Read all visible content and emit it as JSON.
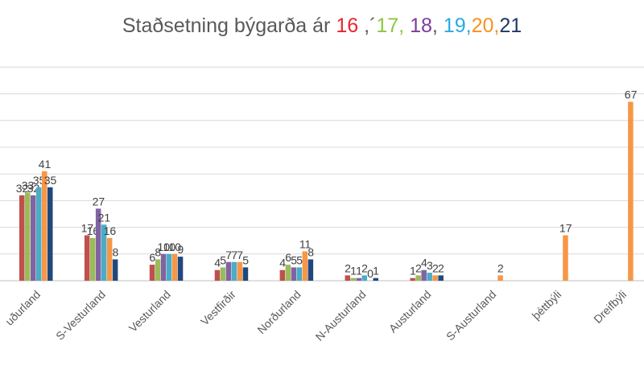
{
  "title_parts": [
    {
      "text": "Staðsetning býgarða ár ",
      "color": "#595959"
    },
    {
      "text": "16",
      "color": "#e8232d"
    },
    {
      "text": " ,´",
      "color": "#595959"
    },
    {
      "text": "17",
      "color": "#8dc63f"
    },
    {
      "text": ", ",
      "color": "#8dc63f"
    },
    {
      "text": "18",
      "color": "#7c3d9b"
    },
    {
      "text": ", ",
      "color": "#595959"
    },
    {
      "text": "19",
      "color": "#29abe2"
    },
    {
      "text": ",",
      "color": "#29abe2"
    },
    {
      "text": "20",
      "color": "#f7931e"
    },
    {
      "text": ",",
      "color": "#f7931e"
    },
    {
      "text": "21",
      "color": "#1f3864"
    }
  ],
  "chart_data": {
    "type": "bar",
    "title": "Staðsetning býgarða ár 16 ,´17, 18, 19,20,21",
    "categories": [
      "Suðurland",
      "S-Vesturland",
      "Vesturland",
      "Vestfirðir",
      "Norðurland",
      "N-Austurland",
      "Austurland",
      "S-Austurland",
      "Þéttbýli",
      "Dreifbýli"
    ],
    "category_labels_visible": [
      "uðurland",
      "S-Vesturland",
      "Vesturland",
      "Vestfirðir",
      "Norðurland",
      "N-Austurland",
      "Austurland",
      "S-Austurland",
      "þéttbýli",
      "Dreifbýli"
    ],
    "series": [
      {
        "color": "#c0504d",
        "values": [
          32,
          17,
          6,
          4,
          4,
          2,
          1,
          null,
          null,
          null
        ]
      },
      {
        "color": "#9bbb59",
        "values": [
          33,
          16,
          8,
          5,
          6,
          1,
          2,
          null,
          null,
          null
        ]
      },
      {
        "color": "#8064a2",
        "values": [
          32,
          27,
          10,
          7,
          5,
          1,
          4,
          null,
          null,
          null
        ]
      },
      {
        "color": "#4bacc6",
        "values": [
          35,
          21,
          10,
          7,
          5,
          2,
          3,
          null,
          null,
          null
        ]
      },
      {
        "color": "#f79646",
        "values": [
          41,
          16,
          10,
          7,
          11,
          0,
          2,
          2,
          17,
          67
        ]
      },
      {
        "color": "#1f497d",
        "values": [
          35,
          8,
          9,
          5,
          8,
          1,
          2,
          null,
          null,
          null
        ]
      }
    ],
    "ylim": [
      0,
      80
    ],
    "yticks": [
      0,
      10,
      20,
      30,
      40,
      50,
      60,
      70,
      80
    ],
    "grid": true,
    "legend": "none",
    "data_labels": true,
    "x_label_rotation": -45
  }
}
